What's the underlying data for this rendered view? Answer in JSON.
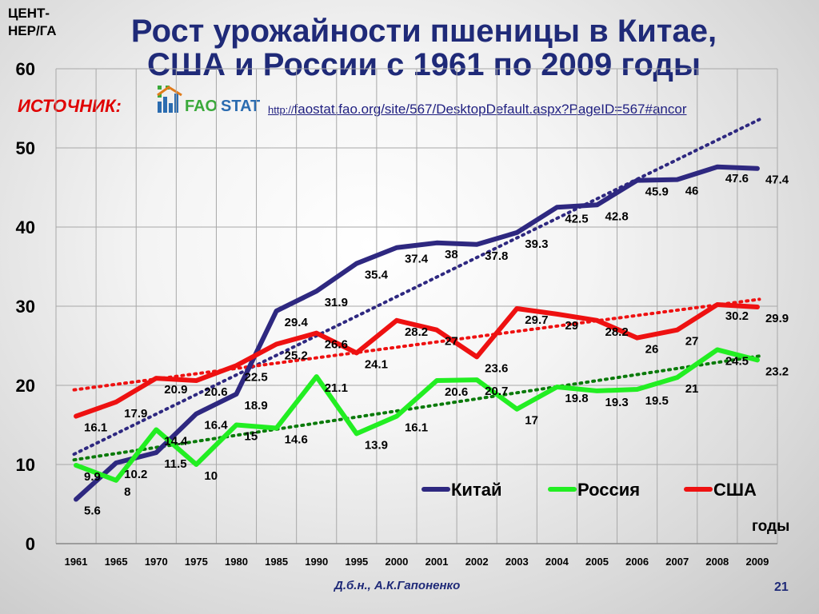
{
  "header": {
    "title_line1": "Рост урожайности пшеницы в Китае,",
    "title_line2": "США и России с 1961 по 2009 годы",
    "y_unit_line1": "ЦЕНТ-",
    "y_unit_line2": "НЕР/ГА",
    "source_label": "ИСТОЧНИК:",
    "source_protocol": "http://",
    "source_url": "faostat.fao.org/site/567/DesktopDefault.aspx?PageID=567#ancor",
    "logo_text_fao": "FAO",
    "logo_text_stat": "STAT"
  },
  "footer": {
    "author": "Д.б.н., А.К.Гапоненко",
    "page": "21"
  },
  "chart_data": {
    "type": "line",
    "xlabel": "годы",
    "ylabel": "ЦЕНТ-НЕР/ГА",
    "ylim": [
      0,
      60
    ],
    "yticks": [
      0,
      10,
      20,
      30,
      40,
      50,
      60
    ],
    "grid": true,
    "legend_position": "bottom-right",
    "categories": [
      "1961",
      "1965",
      "1970",
      "1975",
      "1980",
      "1985",
      "1990",
      "1995",
      "2000",
      "2001",
      "2002",
      "2003",
      "2004",
      "2005",
      "2006",
      "2007",
      "2008",
      "2009"
    ],
    "series": [
      {
        "name": "Китай",
        "color": "#2e2880",
        "trend_color": "#2e2880",
        "values": [
          5.6,
          10.2,
          11.5,
          16.4,
          18.9,
          29.4,
          31.9,
          35.4,
          37.4,
          38,
          37.8,
          39.3,
          42.5,
          42.8,
          45.9,
          46,
          47.6,
          47.4
        ]
      },
      {
        "name": "Россия",
        "color": "#22ee22",
        "trend_color": "#0a7a0a",
        "values": [
          9.9,
          8,
          14.4,
          10,
          15,
          14.6,
          21.1,
          13.9,
          16.1,
          20.6,
          20.7,
          17,
          19.8,
          19.3,
          19.5,
          21,
          24.5,
          23.2
        ]
      },
      {
        "name": "США",
        "color": "#ee1111",
        "trend_color": "#ee1111",
        "values": [
          16.1,
          17.9,
          20.9,
          20.6,
          22.5,
          25.2,
          26.6,
          24.1,
          28.2,
          27,
          23.6,
          29.7,
          29,
          28.2,
          26,
          27,
          30.2,
          29.9
        ]
      }
    ]
  }
}
